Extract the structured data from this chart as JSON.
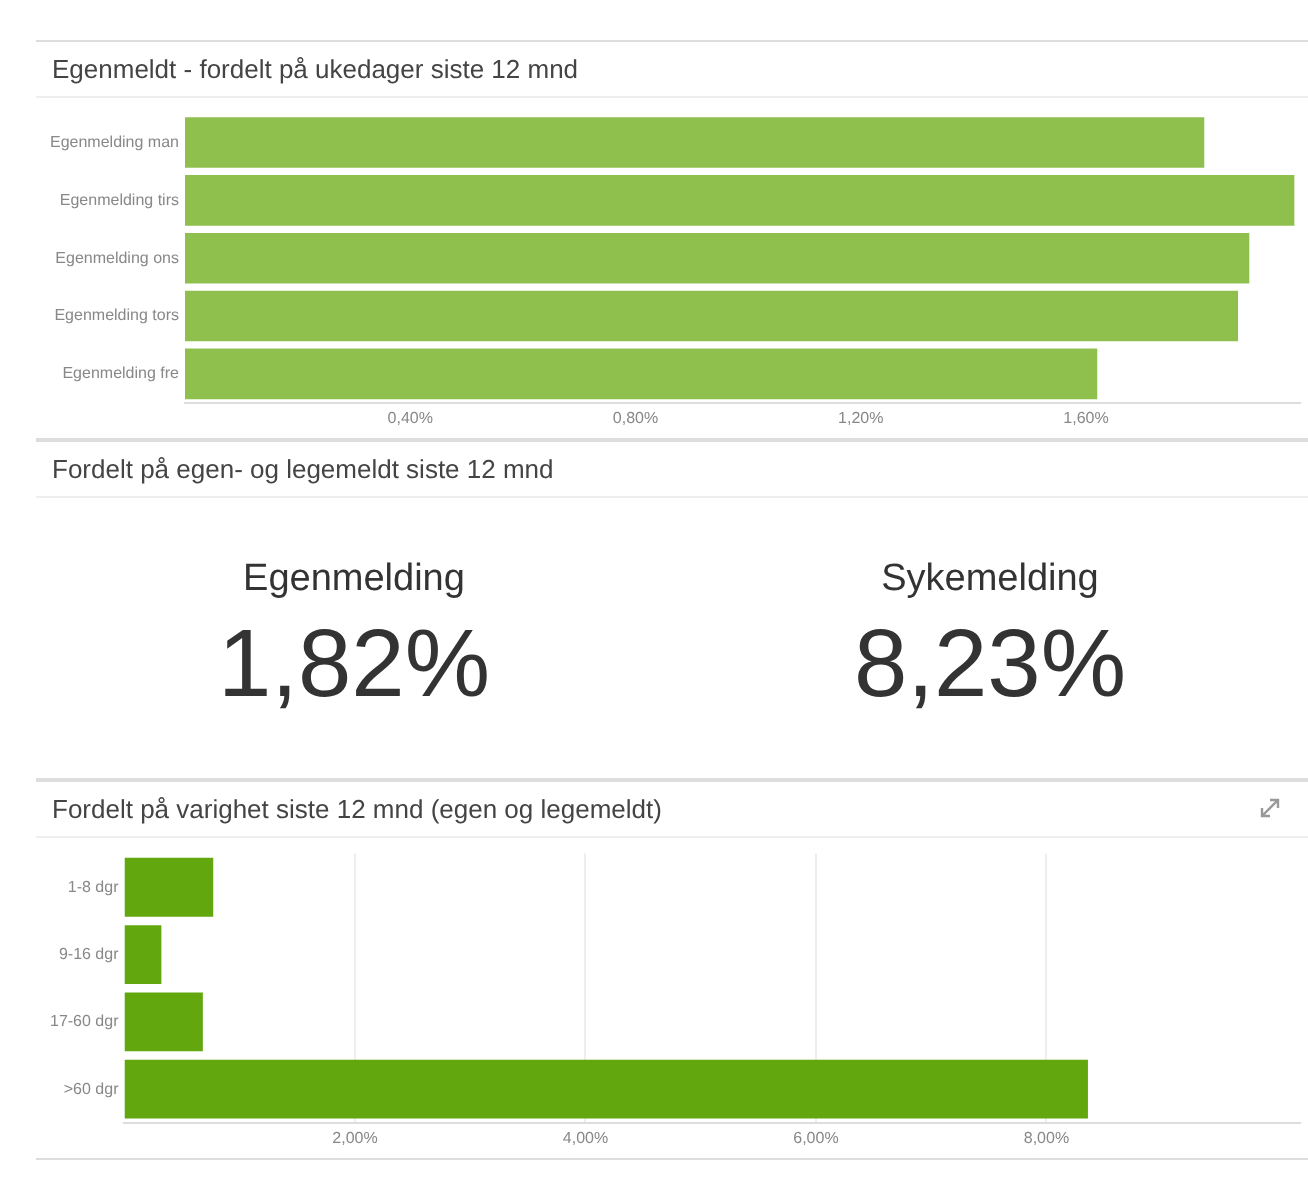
{
  "chart_data": [
    {
      "type": "bar",
      "orientation": "horizontal",
      "title": "Egenmeldt - fordelt på ukedager siste 12 mnd",
      "categories": [
        "Egenmelding man",
        "Egenmelding tirs",
        "Egenmelding ons",
        "Egenmelding tors",
        "Egenmelding fre"
      ],
      "values": [
        1.81,
        1.97,
        1.89,
        1.87,
        1.62
      ],
      "color": "#8fc04e",
      "xlim": [
        0,
        1.98
      ],
      "xticks": [
        {
          "value": 0.4,
          "label": "0,40%"
        },
        {
          "value": 0.8,
          "label": "0,80%"
        },
        {
          "value": 1.2,
          "label": "1,20%"
        },
        {
          "value": 1.6,
          "label": "1,60%"
        }
      ],
      "grid": false,
      "legend": false
    },
    {
      "type": "other",
      "title": "Fordelt på egen- og legemeldt siste 12 mnd",
      "categories": [
        "Egenmelding",
        "Sykemelding"
      ],
      "value_labels": [
        "1,82%",
        "8,23%"
      ]
    },
    {
      "type": "bar",
      "orientation": "horizontal",
      "title": "Fordelt på varighet siste 12 mnd (egen og legemeldt)",
      "categories": [
        "1-8 dgr",
        "9-16 dgr",
        "17-60 dgr",
        ">60 dgr"
      ],
      "values": [
        0.77,
        0.32,
        0.68,
        8.36
      ],
      "color": "#63a70f",
      "xlim": [
        0,
        10.2
      ],
      "xticks": [
        {
          "value": 2,
          "label": "2,00%"
        },
        {
          "value": 4,
          "label": "4,00%"
        },
        {
          "value": 6,
          "label": "6,00%"
        },
        {
          "value": 8,
          "label": "8,00%"
        }
      ],
      "grid": "x",
      "legend": false
    }
  ]
}
